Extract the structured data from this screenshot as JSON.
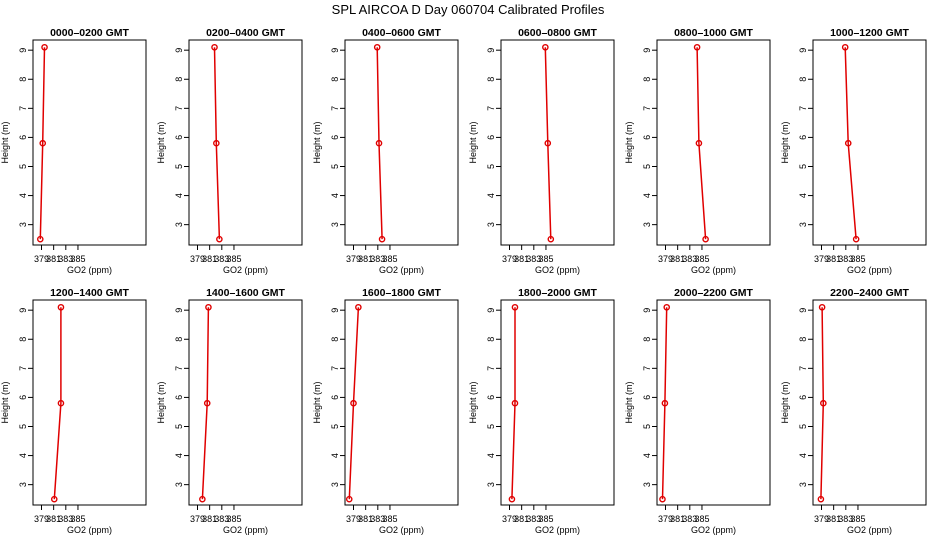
{
  "title": "SPL AIRCOA D  Day 060704  Calibrated Profiles",
  "colors": {
    "series": "#e00000",
    "axis": "#000000"
  },
  "chart_data": [
    {
      "type": "line",
      "title": "0000–0200 GMT",
      "xlabel": "GO2 (ppm)",
      "ylabel": "Height (m)",
      "xlim": [
        377.6,
        396.2
      ],
      "ylim": [
        2.3,
        9.35
      ],
      "xticks": [
        379,
        381,
        383,
        385
      ],
      "yticks": [
        3,
        4,
        5,
        6,
        7,
        8,
        9
      ],
      "points": [
        {
          "x": 378.8,
          "y": 2.5
        },
        {
          "x": 379.2,
          "y": 5.8
        },
        {
          "x": 379.5,
          "y": 9.1
        }
      ]
    },
    {
      "type": "line",
      "title": "0200–0400 GMT",
      "xlabel": "GO2 (ppm)",
      "ylabel": "Height (m)",
      "xlim": [
        377.6,
        396.2
      ],
      "ylim": [
        2.3,
        9.35
      ],
      "xticks": [
        379,
        381,
        383,
        385
      ],
      "yticks": [
        3,
        4,
        5,
        6,
        7,
        8,
        9
      ],
      "points": [
        {
          "x": 382.6,
          "y": 2.5
        },
        {
          "x": 382.1,
          "y": 5.8
        },
        {
          "x": 381.8,
          "y": 9.1
        }
      ]
    },
    {
      "type": "line",
      "title": "0400–0600 GMT",
      "xlabel": "GO2 (ppm)",
      "ylabel": "Height (m)",
      "xlim": [
        377.6,
        396.2
      ],
      "ylim": [
        2.3,
        9.35
      ],
      "xticks": [
        379,
        381,
        383,
        385
      ],
      "yticks": [
        3,
        4,
        5,
        6,
        7,
        8,
        9
      ],
      "points": [
        {
          "x": 383.7,
          "y": 2.5
        },
        {
          "x": 383.2,
          "y": 5.8
        },
        {
          "x": 382.9,
          "y": 9.1
        }
      ]
    },
    {
      "type": "line",
      "title": "0600–0800 GMT",
      "xlabel": "GO2 (ppm)",
      "ylabel": "Height (m)",
      "xlim": [
        377.6,
        396.2
      ],
      "ylim": [
        2.3,
        9.35
      ],
      "xticks": [
        379,
        381,
        383,
        385
      ],
      "yticks": [
        3,
        4,
        5,
        6,
        7,
        8,
        9
      ],
      "points": [
        {
          "x": 385.8,
          "y": 2.5
        },
        {
          "x": 385.3,
          "y": 5.8
        },
        {
          "x": 384.9,
          "y": 9.1
        }
      ]
    },
    {
      "type": "line",
      "title": "0800–1000 GMT",
      "xlabel": "GO2 (ppm)",
      "ylabel": "Height (m)",
      "xlim": [
        377.6,
        396.2
      ],
      "ylim": [
        2.3,
        9.35
      ],
      "xticks": [
        379,
        381,
        383,
        385
      ],
      "yticks": [
        3,
        4,
        5,
        6,
        7,
        8,
        9
      ],
      "points": [
        {
          "x": 385.6,
          "y": 2.5
        },
        {
          "x": 384.5,
          "y": 5.8
        },
        {
          "x": 384.2,
          "y": 9.1
        }
      ]
    },
    {
      "type": "line",
      "title": "1000–1200 GMT",
      "xlabel": "GO2 (ppm)",
      "ylabel": "Height (m)",
      "xlim": [
        377.6,
        396.2
      ],
      "ylim": [
        2.3,
        9.35
      ],
      "xticks": [
        379,
        381,
        383,
        385
      ],
      "yticks": [
        3,
        4,
        5,
        6,
        7,
        8,
        9
      ],
      "points": [
        {
          "x": 384.7,
          "y": 2.5
        },
        {
          "x": 383.4,
          "y": 5.8
        },
        {
          "x": 382.9,
          "y": 9.1
        }
      ]
    },
    {
      "type": "line",
      "title": "1200–1400 GMT",
      "xlabel": "GO2 (ppm)",
      "ylabel": "Height (m)",
      "xlim": [
        377.6,
        396.2
      ],
      "ylim": [
        2.3,
        9.35
      ],
      "xticks": [
        379,
        381,
        383,
        385
      ],
      "yticks": [
        3,
        4,
        5,
        6,
        7,
        8,
        9
      ],
      "points": [
        {
          "x": 381.1,
          "y": 2.5
        },
        {
          "x": 382.2,
          "y": 5.8
        },
        {
          "x": 382.2,
          "y": 9.1
        }
      ]
    },
    {
      "type": "line",
      "title": "1400–1600 GMT",
      "xlabel": "GO2 (ppm)",
      "ylabel": "Height (m)",
      "xlim": [
        377.6,
        396.2
      ],
      "ylim": [
        2.3,
        9.35
      ],
      "xticks": [
        379,
        381,
        383,
        385
      ],
      "yticks": [
        3,
        4,
        5,
        6,
        7,
        8,
        9
      ],
      "points": [
        {
          "x": 379.8,
          "y": 2.5
        },
        {
          "x": 380.6,
          "y": 5.8
        },
        {
          "x": 380.8,
          "y": 9.1
        }
      ]
    },
    {
      "type": "line",
      "title": "1600–1800 GMT",
      "xlabel": "GO2 (ppm)",
      "ylabel": "Height (m)",
      "xlim": [
        377.6,
        396.2
      ],
      "ylim": [
        2.3,
        9.35
      ],
      "xticks": [
        379,
        381,
        383,
        385
      ],
      "yticks": [
        3,
        4,
        5,
        6,
        7,
        8,
        9
      ],
      "points": [
        {
          "x": 378.3,
          "y": 2.5
        },
        {
          "x": 379.0,
          "y": 5.8
        },
        {
          "x": 379.8,
          "y": 9.1
        }
      ]
    },
    {
      "type": "line",
      "title": "1800–2000 GMT",
      "xlabel": "GO2 (ppm)",
      "ylabel": "Height (m)",
      "xlim": [
        377.6,
        396.2
      ],
      "ylim": [
        2.3,
        9.35
      ],
      "xticks": [
        379,
        381,
        383,
        385
      ],
      "yticks": [
        3,
        4,
        5,
        6,
        7,
        8,
        9
      ],
      "points": [
        {
          "x": 379.4,
          "y": 2.5
        },
        {
          "x": 379.9,
          "y": 5.8
        },
        {
          "x": 379.9,
          "y": 9.1
        }
      ]
    },
    {
      "type": "line",
      "title": "2000–2200 GMT",
      "xlabel": "GO2 (ppm)",
      "ylabel": "Height (m)",
      "xlim": [
        377.6,
        396.2
      ],
      "ylim": [
        2.3,
        9.35
      ],
      "xticks": [
        379,
        381,
        383,
        385
      ],
      "yticks": [
        3,
        4,
        5,
        6,
        7,
        8,
        9
      ],
      "points": [
        {
          "x": 378.5,
          "y": 2.5
        },
        {
          "x": 378.9,
          "y": 5.8
        },
        {
          "x": 379.2,
          "y": 9.1
        }
      ]
    },
    {
      "type": "line",
      "title": "2200–2400 GMT",
      "xlabel": "GO2 (ppm)",
      "ylabel": "Height (m)",
      "xlim": [
        377.6,
        396.2
      ],
      "ylim": [
        2.3,
        9.35
      ],
      "xticks": [
        379,
        381,
        383,
        385
      ],
      "yticks": [
        3,
        4,
        5,
        6,
        7,
        8,
        9
      ],
      "points": [
        {
          "x": 378.9,
          "y": 2.5
        },
        {
          "x": 379.3,
          "y": 5.8
        },
        {
          "x": 379.1,
          "y": 9.1
        }
      ]
    }
  ]
}
